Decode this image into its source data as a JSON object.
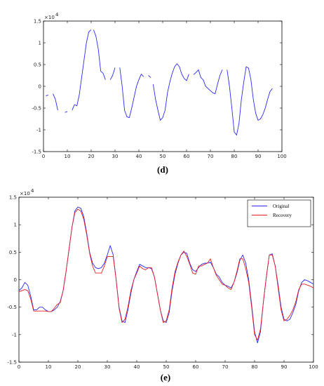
{
  "chart_data": [
    {
      "type": "line",
      "panel_label": "(d)",
      "scale_label": "×10",
      "scale_exponent": "4",
      "xlim": [
        0,
        100
      ],
      "ylim": [
        -1.5,
        1.5
      ],
      "x_ticks": [
        0,
        10,
        20,
        30,
        40,
        50,
        60,
        70,
        80,
        90,
        100
      ],
      "y_ticks": [
        -1.5,
        -1,
        -0.5,
        0,
        0.5,
        1,
        1.5
      ],
      "x_tick_labels": [
        "0",
        "10",
        "20",
        "30",
        "40",
        "50",
        "60",
        "70",
        "80",
        "90",
        "100"
      ],
      "y_tick_labels": [
        "-1.5",
        "-1",
        "-0.5",
        "0",
        "0.5",
        "1",
        "1.5"
      ],
      "grid": false,
      "series": [
        {
          "color": "#2a2aff",
          "segments": [
            [
              [
                1,
                -0.22
              ],
              [
                2,
                -0.2
              ]
            ],
            [
              [
                4,
                -0.17
              ],
              [
                5,
                -0.3
              ],
              [
                6,
                -0.55
              ]
            ],
            [
              [
                9,
                -0.6
              ],
              [
                10,
                -0.58
              ]
            ],
            [
              [
                12,
                -0.55
              ],
              [
                13,
                -0.42
              ],
              [
                14,
                -0.45
              ],
              [
                15,
                -0.2
              ],
              [
                16,
                0.2
              ],
              [
                17,
                0.6
              ],
              [
                18,
                1.0
              ],
              [
                19,
                1.25
              ],
              [
                20,
                1.3
              ]
            ],
            [
              [
                21,
                1.3
              ],
              [
                22,
                1.15
              ],
              [
                23,
                0.85
              ],
              [
                24,
                0.35
              ],
              [
                25,
                0.3
              ],
              [
                26,
                0.15
              ]
            ],
            [
              [
                28,
                0.15
              ],
              [
                29,
                0.25
              ],
              [
                30,
                0.43
              ]
            ],
            [
              [
                32,
                0.43
              ],
              [
                33,
                0.0
              ],
              [
                34,
                -0.55
              ],
              [
                35,
                -0.7
              ],
              [
                36,
                -0.72
              ],
              [
                37,
                -0.5
              ],
              [
                38,
                -0.25
              ],
              [
                39,
                0.0
              ],
              [
                40,
                0.15
              ],
              [
                41,
                0.28
              ],
              [
                42,
                0.22
              ]
            ],
            [
              [
                44,
                0.25
              ],
              [
                45,
                0.2
              ]
            ],
            [
              [
                46,
                0.05
              ],
              [
                47,
                -0.3
              ],
              [
                48,
                -0.55
              ],
              [
                49,
                -0.78
              ],
              [
                50,
                -0.72
              ],
              [
                51,
                -0.55
              ],
              [
                52,
                -0.15
              ],
              [
                53,
                0.1
              ],
              [
                54,
                0.3
              ],
              [
                55,
                0.45
              ],
              [
                56,
                0.52
              ],
              [
                57,
                0.45
              ],
              [
                58,
                0.28
              ],
              [
                59,
                0.18
              ],
              [
                60,
                0.13
              ],
              [
                61,
                0.28
              ]
            ],
            [
              [
                63,
                0.27
              ],
              [
                64,
                0.32
              ],
              [
                65,
                0.38
              ],
              [
                66,
                0.2
              ],
              [
                67,
                0.15
              ],
              [
                68,
                0.0
              ],
              [
                69,
                -0.05
              ],
              [
                70,
                -0.1
              ],
              [
                71,
                -0.15
              ],
              [
                72,
                -0.17
              ],
              [
                73,
                0.05
              ],
              [
                74,
                0.25
              ],
              [
                75,
                0.38
              ]
            ],
            [
              [
                77,
                0.38
              ],
              [
                78,
                0.0
              ],
              [
                79,
                -0.5
              ],
              [
                80,
                -1.05
              ],
              [
                81,
                -1.12
              ],
              [
                82,
                -0.85
              ],
              [
                83,
                -0.3
              ],
              [
                84,
                0.1
              ],
              [
                85,
                0.45
              ],
              [
                86,
                0.42
              ],
              [
                87,
                0.15
              ],
              [
                88,
                -0.3
              ],
              [
                89,
                -0.62
              ],
              [
                90,
                -0.78
              ],
              [
                91,
                -0.75
              ],
              [
                92,
                -0.65
              ],
              [
                93,
                -0.5
              ],
              [
                94,
                -0.3
              ],
              [
                95,
                -0.12
              ],
              [
                96,
                -0.05
              ]
            ]
          ]
        }
      ]
    },
    {
      "type": "line",
      "panel_label": "(e)",
      "scale_label": "×10",
      "scale_exponent": "4",
      "xlim": [
        0,
        100
      ],
      "ylim": [
        -1.5,
        1.5
      ],
      "x_ticks": [
        0,
        10,
        20,
        30,
        40,
        50,
        60,
        70,
        80,
        90,
        100
      ],
      "y_ticks": [
        -1.5,
        -1,
        -0.5,
        0,
        0.5,
        1,
        1.5
      ],
      "x_tick_labels": [
        "0",
        "10",
        "20",
        "30",
        "40",
        "50",
        "60",
        "70",
        "80",
        "90",
        "100"
      ],
      "y_tick_labels": [
        "-1.5",
        "-1",
        "-0.5",
        "0",
        "0.5",
        "1",
        "1.5"
      ],
      "grid": false,
      "legend_position": "top-right",
      "series": [
        {
          "name": "Original",
          "color": "#2a2aff",
          "x": [
            0,
            1,
            2,
            3,
            4,
            5,
            6,
            7,
            8,
            9,
            10,
            11,
            12,
            13,
            14,
            15,
            16,
            17,
            18,
            19,
            20,
            21,
            22,
            23,
            24,
            25,
            26,
            27,
            28,
            29,
            30,
            31,
            32,
            33,
            34,
            35,
            36,
            37,
            38,
            39,
            40,
            41,
            42,
            43,
            44,
            45,
            46,
            47,
            48,
            49,
            50,
            51,
            52,
            53,
            54,
            55,
            56,
            57,
            58,
            59,
            60,
            61,
            62,
            63,
            64,
            65,
            66,
            67,
            68,
            69,
            70,
            71,
            72,
            73,
            74,
            75,
            76,
            77,
            78,
            79,
            80,
            81,
            82,
            83,
            84,
            85,
            86,
            87,
            88,
            89,
            90,
            91,
            92,
            93,
            94,
            95,
            96,
            97,
            98,
            99,
            100
          ],
          "y": [
            -0.2,
            -0.15,
            -0.05,
            -0.1,
            -0.3,
            -0.55,
            -0.55,
            -0.5,
            -0.5,
            -0.55,
            -0.58,
            -0.58,
            -0.55,
            -0.5,
            -0.4,
            -0.2,
            0.15,
            0.55,
            0.95,
            1.25,
            1.32,
            1.3,
            1.15,
            0.85,
            0.5,
            0.3,
            0.22,
            0.2,
            0.22,
            0.3,
            0.45,
            0.62,
            0.45,
            0.0,
            -0.5,
            -0.75,
            -0.78,
            -0.55,
            -0.25,
            0.0,
            0.15,
            0.28,
            0.25,
            0.22,
            0.22,
            0.2,
            0.05,
            -0.25,
            -0.55,
            -0.75,
            -0.78,
            -0.6,
            -0.2,
            0.1,
            0.3,
            0.45,
            0.5,
            0.48,
            0.3,
            0.18,
            0.15,
            0.22,
            0.28,
            0.3,
            0.3,
            0.32,
            0.22,
            0.1,
            0.05,
            -0.05,
            -0.1,
            -0.12,
            -0.15,
            -0.05,
            0.12,
            0.35,
            0.45,
            0.3,
            0.0,
            -0.45,
            -0.95,
            -1.15,
            -0.95,
            -0.4,
            0.05,
            0.45,
            0.47,
            0.25,
            -0.1,
            -0.5,
            -0.72,
            -0.75,
            -0.72,
            -0.6,
            -0.45,
            -0.2,
            -0.05,
            0.0,
            -0.02,
            -0.05,
            -0.08
          ]
        },
        {
          "name": "Recovery",
          "color": "#e82020",
          "x": [
            0,
            1,
            2,
            3,
            4,
            5,
            6,
            7,
            8,
            9,
            10,
            11,
            12,
            13,
            14,
            15,
            16,
            17,
            18,
            19,
            20,
            21,
            22,
            23,
            24,
            25,
            26,
            27,
            28,
            29,
            30,
            31,
            32,
            33,
            34,
            35,
            36,
            37,
            38,
            39,
            40,
            41,
            42,
            43,
            44,
            45,
            46,
            47,
            48,
            49,
            50,
            51,
            52,
            53,
            54,
            55,
            56,
            57,
            58,
            59,
            60,
            61,
            62,
            63,
            64,
            65,
            66,
            67,
            68,
            69,
            70,
            71,
            72,
            73,
            74,
            75,
            76,
            77,
            78,
            79,
            80,
            81,
            82,
            83,
            84,
            85,
            86,
            87,
            88,
            89,
            90,
            91,
            92,
            93,
            94,
            95,
            96,
            97,
            98,
            99,
            100
          ],
          "y": [
            -0.22,
            -0.2,
            -0.18,
            -0.2,
            -0.35,
            -0.57,
            -0.57,
            -0.57,
            -0.57,
            -0.57,
            -0.58,
            -0.58,
            -0.52,
            -0.45,
            -0.42,
            -0.2,
            0.15,
            0.55,
            0.95,
            1.22,
            1.28,
            1.25,
            1.1,
            0.82,
            0.48,
            0.25,
            0.12,
            0.12,
            0.12,
            0.25,
            0.42,
            0.42,
            0.42,
            0.0,
            -0.52,
            -0.78,
            -0.72,
            -0.5,
            -0.2,
            0.0,
            0.12,
            0.25,
            0.2,
            0.18,
            0.22,
            0.22,
            0.05,
            -0.25,
            -0.55,
            -0.78,
            -0.75,
            -0.55,
            -0.15,
            0.15,
            0.32,
            0.45,
            0.52,
            0.42,
            0.28,
            0.12,
            0.1,
            0.25,
            0.25,
            0.28,
            0.3,
            0.38,
            0.22,
            0.08,
            0.0,
            -0.08,
            -0.1,
            -0.15,
            -0.18,
            -0.05,
            0.15,
            0.38,
            0.38,
            0.2,
            -0.05,
            -0.5,
            -1.0,
            -1.1,
            -0.9,
            -0.4,
            0.05,
            0.45,
            0.45,
            0.25,
            -0.15,
            -0.55,
            -0.75,
            -0.72,
            -0.65,
            -0.55,
            -0.4,
            -0.18,
            -0.08,
            -0.08,
            -0.1,
            -0.12,
            -0.15
          ]
        }
      ]
    }
  ]
}
